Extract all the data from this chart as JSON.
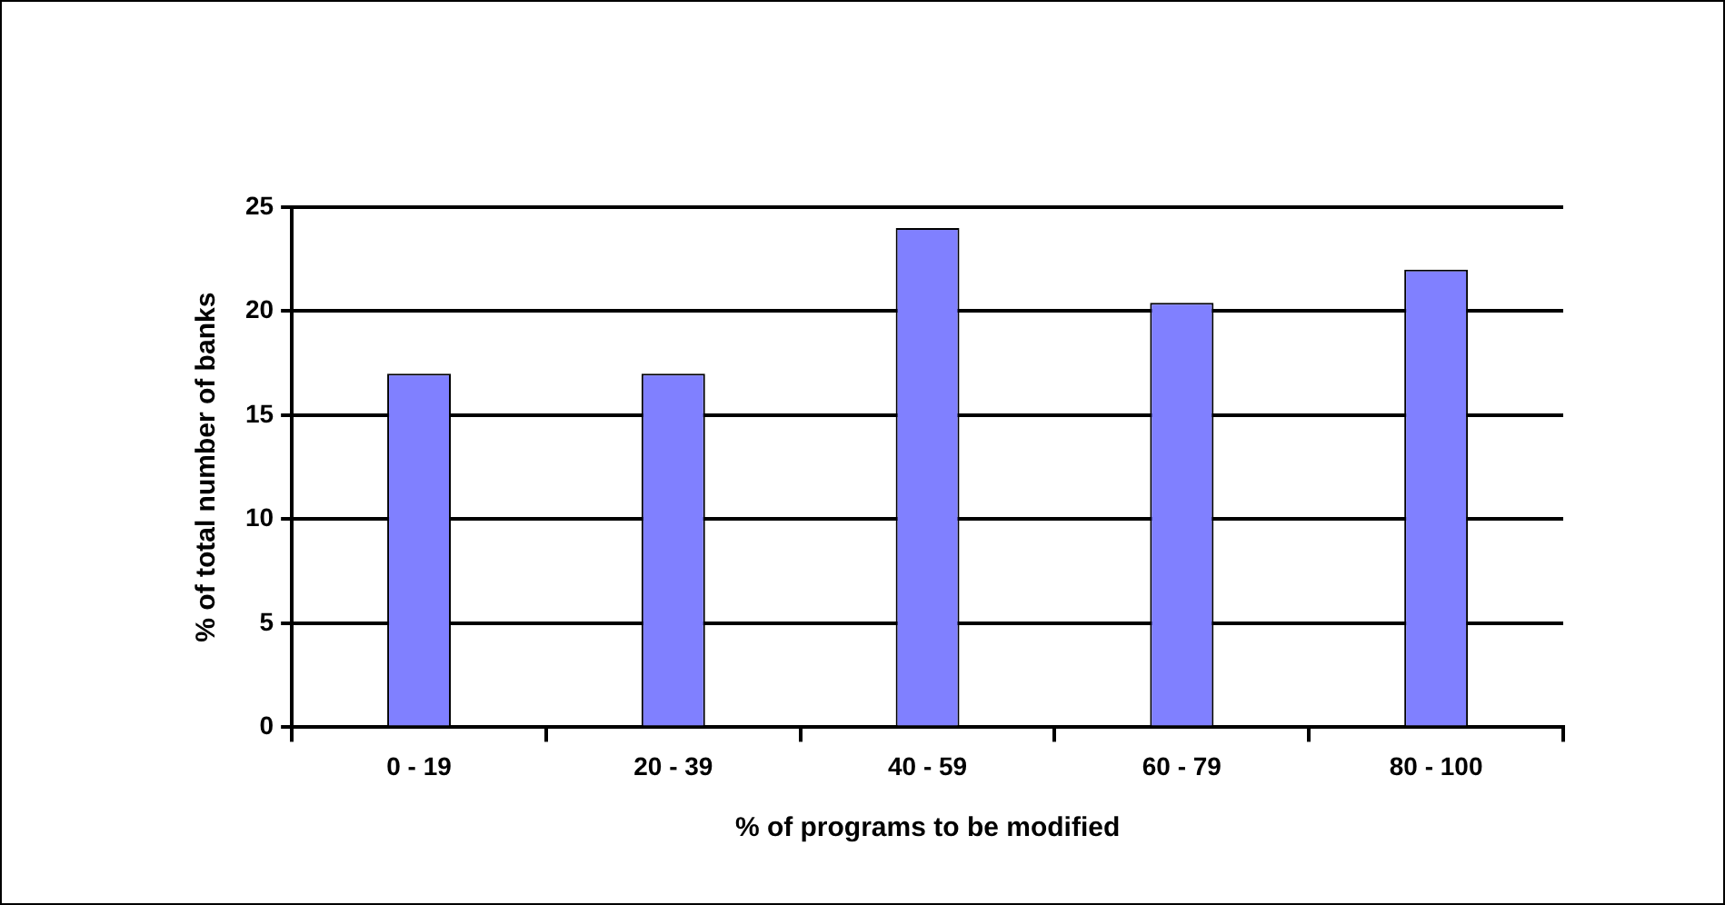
{
  "chart_data": {
    "type": "bar",
    "xlabel": "% of programs to be modified",
    "ylabel": "% of total number of banks",
    "categories": [
      "0 - 19",
      "20 - 39",
      "40 - 59",
      "60 - 79",
      "80 - 100"
    ],
    "values": [
      17,
      17,
      24,
      20.4,
      22
    ],
    "color": "#8080ff",
    "ylim": [
      0,
      25
    ],
    "yticks": [
      0,
      5,
      10,
      15,
      20,
      25
    ],
    "grid": "y"
  }
}
